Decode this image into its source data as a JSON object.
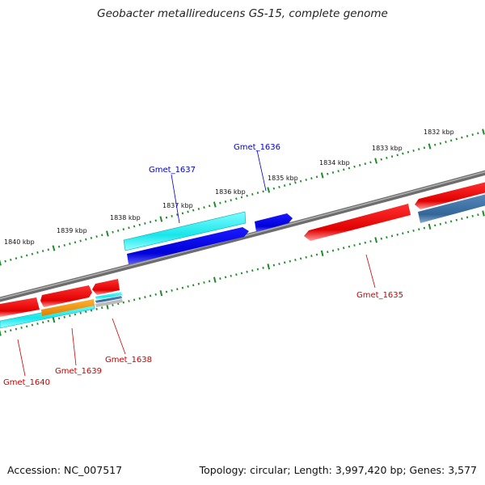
{
  "title": "Geobacter metallireducens GS-15, complete genome",
  "footer": {
    "accession": "Accession: NC_007517",
    "topology": "Topology: circular; Length: 3,997,420 bp; Genes: 3,577"
  },
  "colors": {
    "backbone": "#8a8a8a",
    "tick": "#1f8a2a",
    "red_gene": "#ff0000",
    "blue_gene": "#0000ee",
    "cyan_gene": "#22eeee",
    "steel_gene": "#4477aa",
    "orange_gene": "#ff9900",
    "label_red": "#cc0000",
    "label_blue": "#0000cc"
  },
  "kbp_labels": [
    "1832 kbp",
    "1833 kbp",
    "1834 kbp",
    "1835 kbp",
    "1836 kbp",
    "1837 kbp",
    "1838 kbp",
    "1839 kbp",
    "1840 kbp"
  ],
  "gene_labels": [
    {
      "name": "Gmet_1636",
      "color": "blue"
    },
    {
      "name": "Gmet_1637",
      "color": "blue"
    },
    {
      "name": "Gmet_1635",
      "color": "red"
    },
    {
      "name": "Gmet_1638",
      "color": "red"
    },
    {
      "name": "Gmet_1639",
      "color": "red"
    },
    {
      "name": "Gmet_1640",
      "color": "red"
    }
  ]
}
